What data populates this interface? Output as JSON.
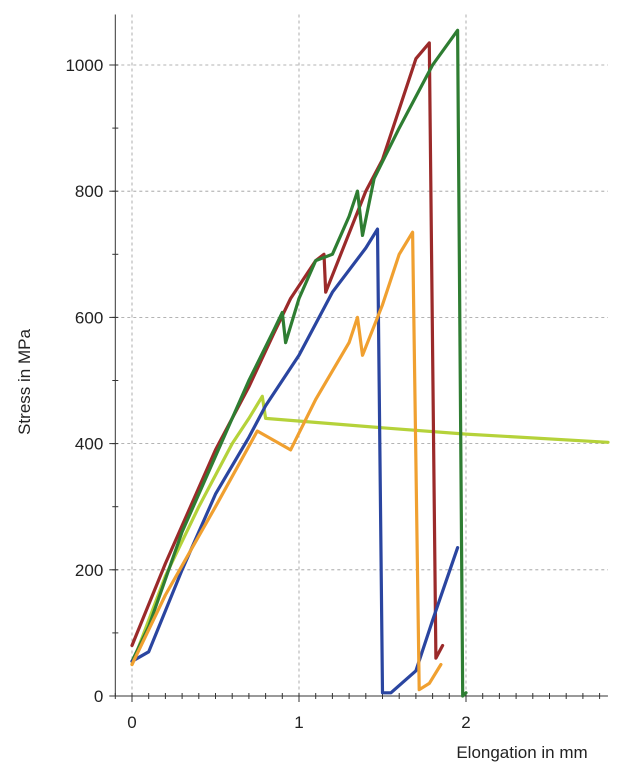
{
  "chart_data": {
    "type": "line",
    "title": "",
    "xlabel": "Elongation in mm",
    "ylabel": "Stress in MPa",
    "xlim": [
      -0.1,
      2.85
    ],
    "ylim": [
      0,
      1080
    ],
    "x_ticks": [
      0,
      1,
      2
    ],
    "y_ticks": [
      0,
      200,
      400,
      600,
      800,
      1000
    ],
    "grid": true,
    "legend": "none",
    "series": [
      {
        "color": "#b5d23a",
        "points": [
          [
            0,
            50
          ],
          [
            0.2,
            190
          ],
          [
            0.4,
            300
          ],
          [
            0.6,
            400
          ],
          [
            0.7,
            440
          ],
          [
            0.78,
            475
          ],
          [
            0.8,
            440
          ],
          [
            1.5,
            425
          ],
          [
            2.0,
            415
          ],
          [
            2.85,
            402
          ]
        ]
      },
      {
        "color": "#9b2a2a",
        "points": [
          [
            0,
            80
          ],
          [
            0.2,
            210
          ],
          [
            0.5,
            390
          ],
          [
            0.7,
            490
          ],
          [
            0.85,
            575
          ],
          [
            0.95,
            630
          ],
          [
            1.1,
            690
          ],
          [
            1.15,
            700
          ],
          [
            1.16,
            640
          ],
          [
            1.4,
            800
          ],
          [
            1.5,
            850
          ],
          [
            1.7,
            1010
          ],
          [
            1.78,
            1035
          ],
          [
            1.82,
            60
          ],
          [
            1.86,
            80
          ]
        ]
      },
      {
        "color": "#2e7d32",
        "points": [
          [
            0,
            55
          ],
          [
            0.1,
            110
          ],
          [
            0.3,
            260
          ],
          [
            0.5,
            380
          ],
          [
            0.7,
            500
          ],
          [
            0.85,
            580
          ],
          [
            0.9,
            608
          ],
          [
            0.92,
            560
          ],
          [
            1.0,
            630
          ],
          [
            1.1,
            690
          ],
          [
            1.2,
            700
          ],
          [
            1.3,
            760
          ],
          [
            1.35,
            800
          ],
          [
            1.38,
            730
          ],
          [
            1.45,
            820
          ],
          [
            1.6,
            900
          ],
          [
            1.8,
            1000
          ],
          [
            1.95,
            1055
          ],
          [
            1.98,
            0
          ],
          [
            2.0,
            5
          ]
        ]
      },
      {
        "color": "#2a45a0",
        "points": [
          [
            0,
            55
          ],
          [
            0.1,
            70
          ],
          [
            0.3,
            200
          ],
          [
            0.5,
            320
          ],
          [
            0.7,
            410
          ],
          [
            0.8,
            460
          ],
          [
            1.0,
            540
          ],
          [
            1.2,
            640
          ],
          [
            1.4,
            710
          ],
          [
            1.47,
            740
          ],
          [
            1.5,
            5
          ],
          [
            1.55,
            5
          ],
          [
            1.7,
            40
          ],
          [
            1.8,
            120
          ],
          [
            1.95,
            235
          ]
        ]
      },
      {
        "color": "#f0a030",
        "points": [
          [
            0,
            50
          ],
          [
            0.2,
            160
          ],
          [
            0.5,
            300
          ],
          [
            0.75,
            420
          ],
          [
            0.95,
            390
          ],
          [
            1.1,
            470
          ],
          [
            1.3,
            560
          ],
          [
            1.35,
            600
          ],
          [
            1.38,
            540
          ],
          [
            1.5,
            620
          ],
          [
            1.6,
            700
          ],
          [
            1.68,
            735
          ],
          [
            1.72,
            10
          ],
          [
            1.78,
            20
          ],
          [
            1.85,
            50
          ]
        ]
      }
    ]
  }
}
